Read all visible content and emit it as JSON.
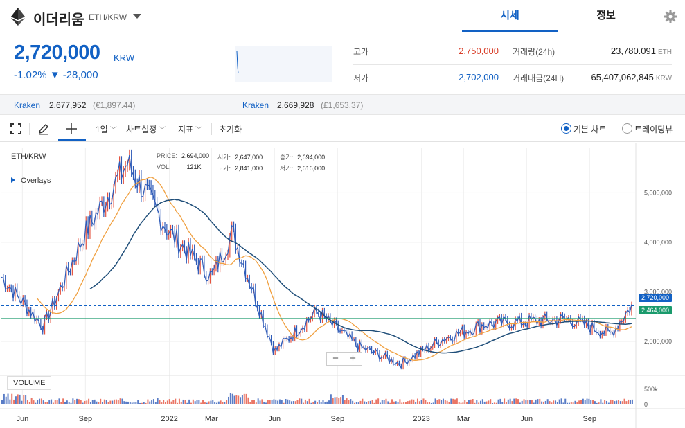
{
  "header": {
    "coin_name": "이더리움",
    "pair": "ETH/KRW",
    "tabs": [
      "시세",
      "정보"
    ]
  },
  "price": {
    "current": "2,720,000",
    "unit": "KRW",
    "change_pct": "-1.02%",
    "change_abs": "▼ -28,000"
  },
  "stats": {
    "high_label": "고가",
    "high_value": "2,750,000",
    "low_label": "저가",
    "low_value": "2,702,000",
    "volume_label": "거래량(24h)",
    "volume_value": "23,780.091",
    "volume_unit": "ETH",
    "turnover_label": "거래대금(24H)",
    "turnover_value": "65,407,062,845",
    "turnover_unit": "KRW"
  },
  "exchanges": [
    {
      "name": "Kraken",
      "value": "2,677,952",
      "sub": "(€1,897.44)"
    },
    {
      "name": "Kraken",
      "value": "2,669,928",
      "sub": "(£1,653.37)"
    }
  ],
  "toolbar": {
    "interval": "1일",
    "chart_settings": "차트설정",
    "indicators": "지표",
    "reset": "초기화",
    "basic_chart": "기본 차트",
    "tradingview": "트레이딩뷰"
  },
  "chart": {
    "title": "ETH/KRW",
    "overlays": "Overlays",
    "ohlc": {
      "price_label": "PRICE:",
      "price": "2,694,000",
      "vol_label": "VOL:",
      "vol": "121K",
      "open_label": "시가:",
      "open": "2,647,000",
      "high_label": "고가:",
      "high": "2,841,000",
      "close_label": "종가:",
      "close": "2,694,000",
      "low_label": "저가:",
      "low": "2,616,000"
    },
    "volume_label": "VOLUME",
    "tags": {
      "last": "2,720,000",
      "green": "2,464,000"
    },
    "zoom_out": "−",
    "zoom_in": "+",
    "colors": {
      "up": "#e5533f",
      "down": "#2f5bb8",
      "ma_long": "#1f4e79",
      "ma_short": "#f0a040",
      "hline": "#1a9a6c",
      "last": "#1261c4"
    }
  },
  "chart_data": {
    "type": "line",
    "title": "ETH/KRW",
    "y_ticks": [
      "5,000,000",
      "4,000,000",
      "3,000,000",
      "2,000,000"
    ],
    "vol_ticks": [
      "500k",
      "0"
    ],
    "x_ticks": [
      "Jun",
      "Sep",
      "2022",
      "Mar",
      "Jun",
      "Sep",
      "2023",
      "Mar",
      "Jun",
      "Sep"
    ],
    "ylim": [
      1400000,
      5900000
    ],
    "x_dates": [
      "2021-05",
      "2021-07",
      "2021-09",
      "2021-11",
      "2022-01",
      "2022-03",
      "2022-04",
      "2022-06",
      "2022-08",
      "2022-10",
      "2022-12",
      "2023-02",
      "2023-04",
      "2023-06",
      "2023-08",
      "2023-10",
      "2023-11"
    ],
    "series": [
      {
        "values": [
          3300000,
          2300000,
          4200000,
          5600000,
          4200000,
          3300000,
          4200000,
          1800000,
          2600000,
          1900000,
          1550000,
          2050000,
          2350000,
          2400000,
          2450000,
          2150000,
          2720000
        ]
      }
    ],
    "hline_values": [
      2720000,
      2464000
    ]
  }
}
